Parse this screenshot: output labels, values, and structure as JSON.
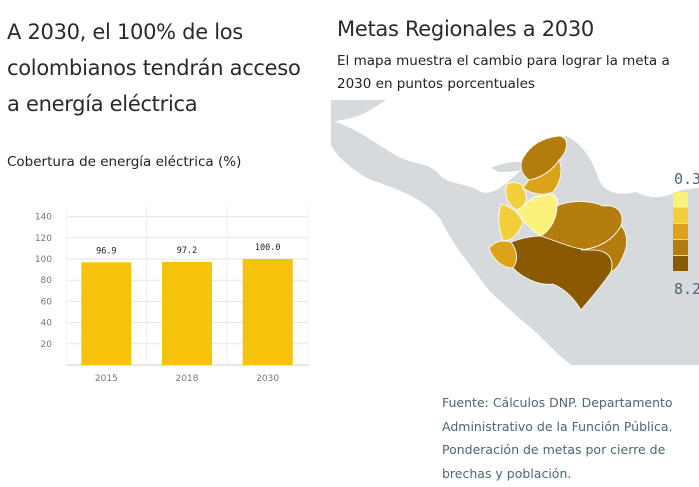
{
  "headline": "A 2030, el 100% de los colombianos tendrán acceso a energía eléctrica",
  "chart_caption": "Cobertura de energía eléctrica (%)",
  "map_title": "Metas Regionales a 2030",
  "map_subtitle": "El mapa muestra el cambio para lograr la meta a 2030 en puntos porcentuales",
  "legend": {
    "min_label": "0.3",
    "max_label": "8.2",
    "colors": [
      "#fbf27c",
      "#f2cf3a",
      "#dca31a",
      "#b37c0d",
      "#8a5a02"
    ]
  },
  "source": "Fuente: Cálculos DNP. Departamento Administrativo de la Función Pública. Ponderación de metas por cierre de brechas y población.",
  "chart_data": {
    "type": "bar",
    "categories": [
      "2015",
      "2018",
      "2030"
    ],
    "values": [
      96.9,
      97.2,
      100.0
    ],
    "value_labels": [
      "96.9",
      "97.2",
      "100.0"
    ],
    "ylim": [
      0,
      150
    ],
    "yticks": [
      20,
      40,
      60,
      80,
      100,
      120,
      140
    ],
    "grid": true,
    "bar_color": "#f7c20a"
  }
}
